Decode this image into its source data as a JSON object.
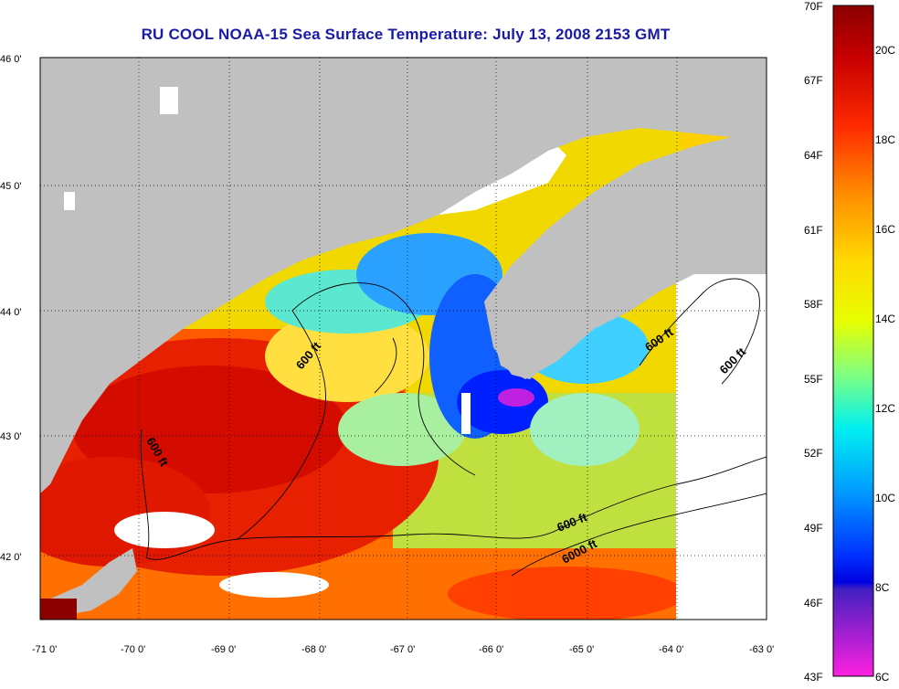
{
  "title": "RU COOL  NOAA-15  Sea Surface Temperature:  July 13, 2008 2153 GMT",
  "x_ticks": [
    "-71 0'",
    "-70 0'",
    "-69 0'",
    "-68 0'",
    "-67 0'",
    "-66 0'",
    "-65 0'",
    "-64 0'",
    "-63 0'"
  ],
  "y_ticks": [
    "46 0'",
    "45 0'",
    "44 0'",
    "43 0'",
    "42 0'"
  ],
  "contour_labels": [
    "600 ft",
    "600 ft",
    "600 ft",
    "600 ft",
    "600 ft",
    "6000 ft"
  ],
  "colorbar": {
    "fahrenheit_labels": [
      "70F",
      "67F",
      "64F",
      "61F",
      "58F",
      "55F",
      "52F",
      "49F",
      "46F",
      "43F"
    ],
    "celsius_labels": [
      "20C",
      "18C",
      "16C",
      "14C",
      "12C",
      "10C",
      "8C",
      "6C"
    ]
  },
  "colors": {
    "title": "#1a1aa8",
    "land": "#c0c0c0",
    "cloud": "#ffffff"
  }
}
